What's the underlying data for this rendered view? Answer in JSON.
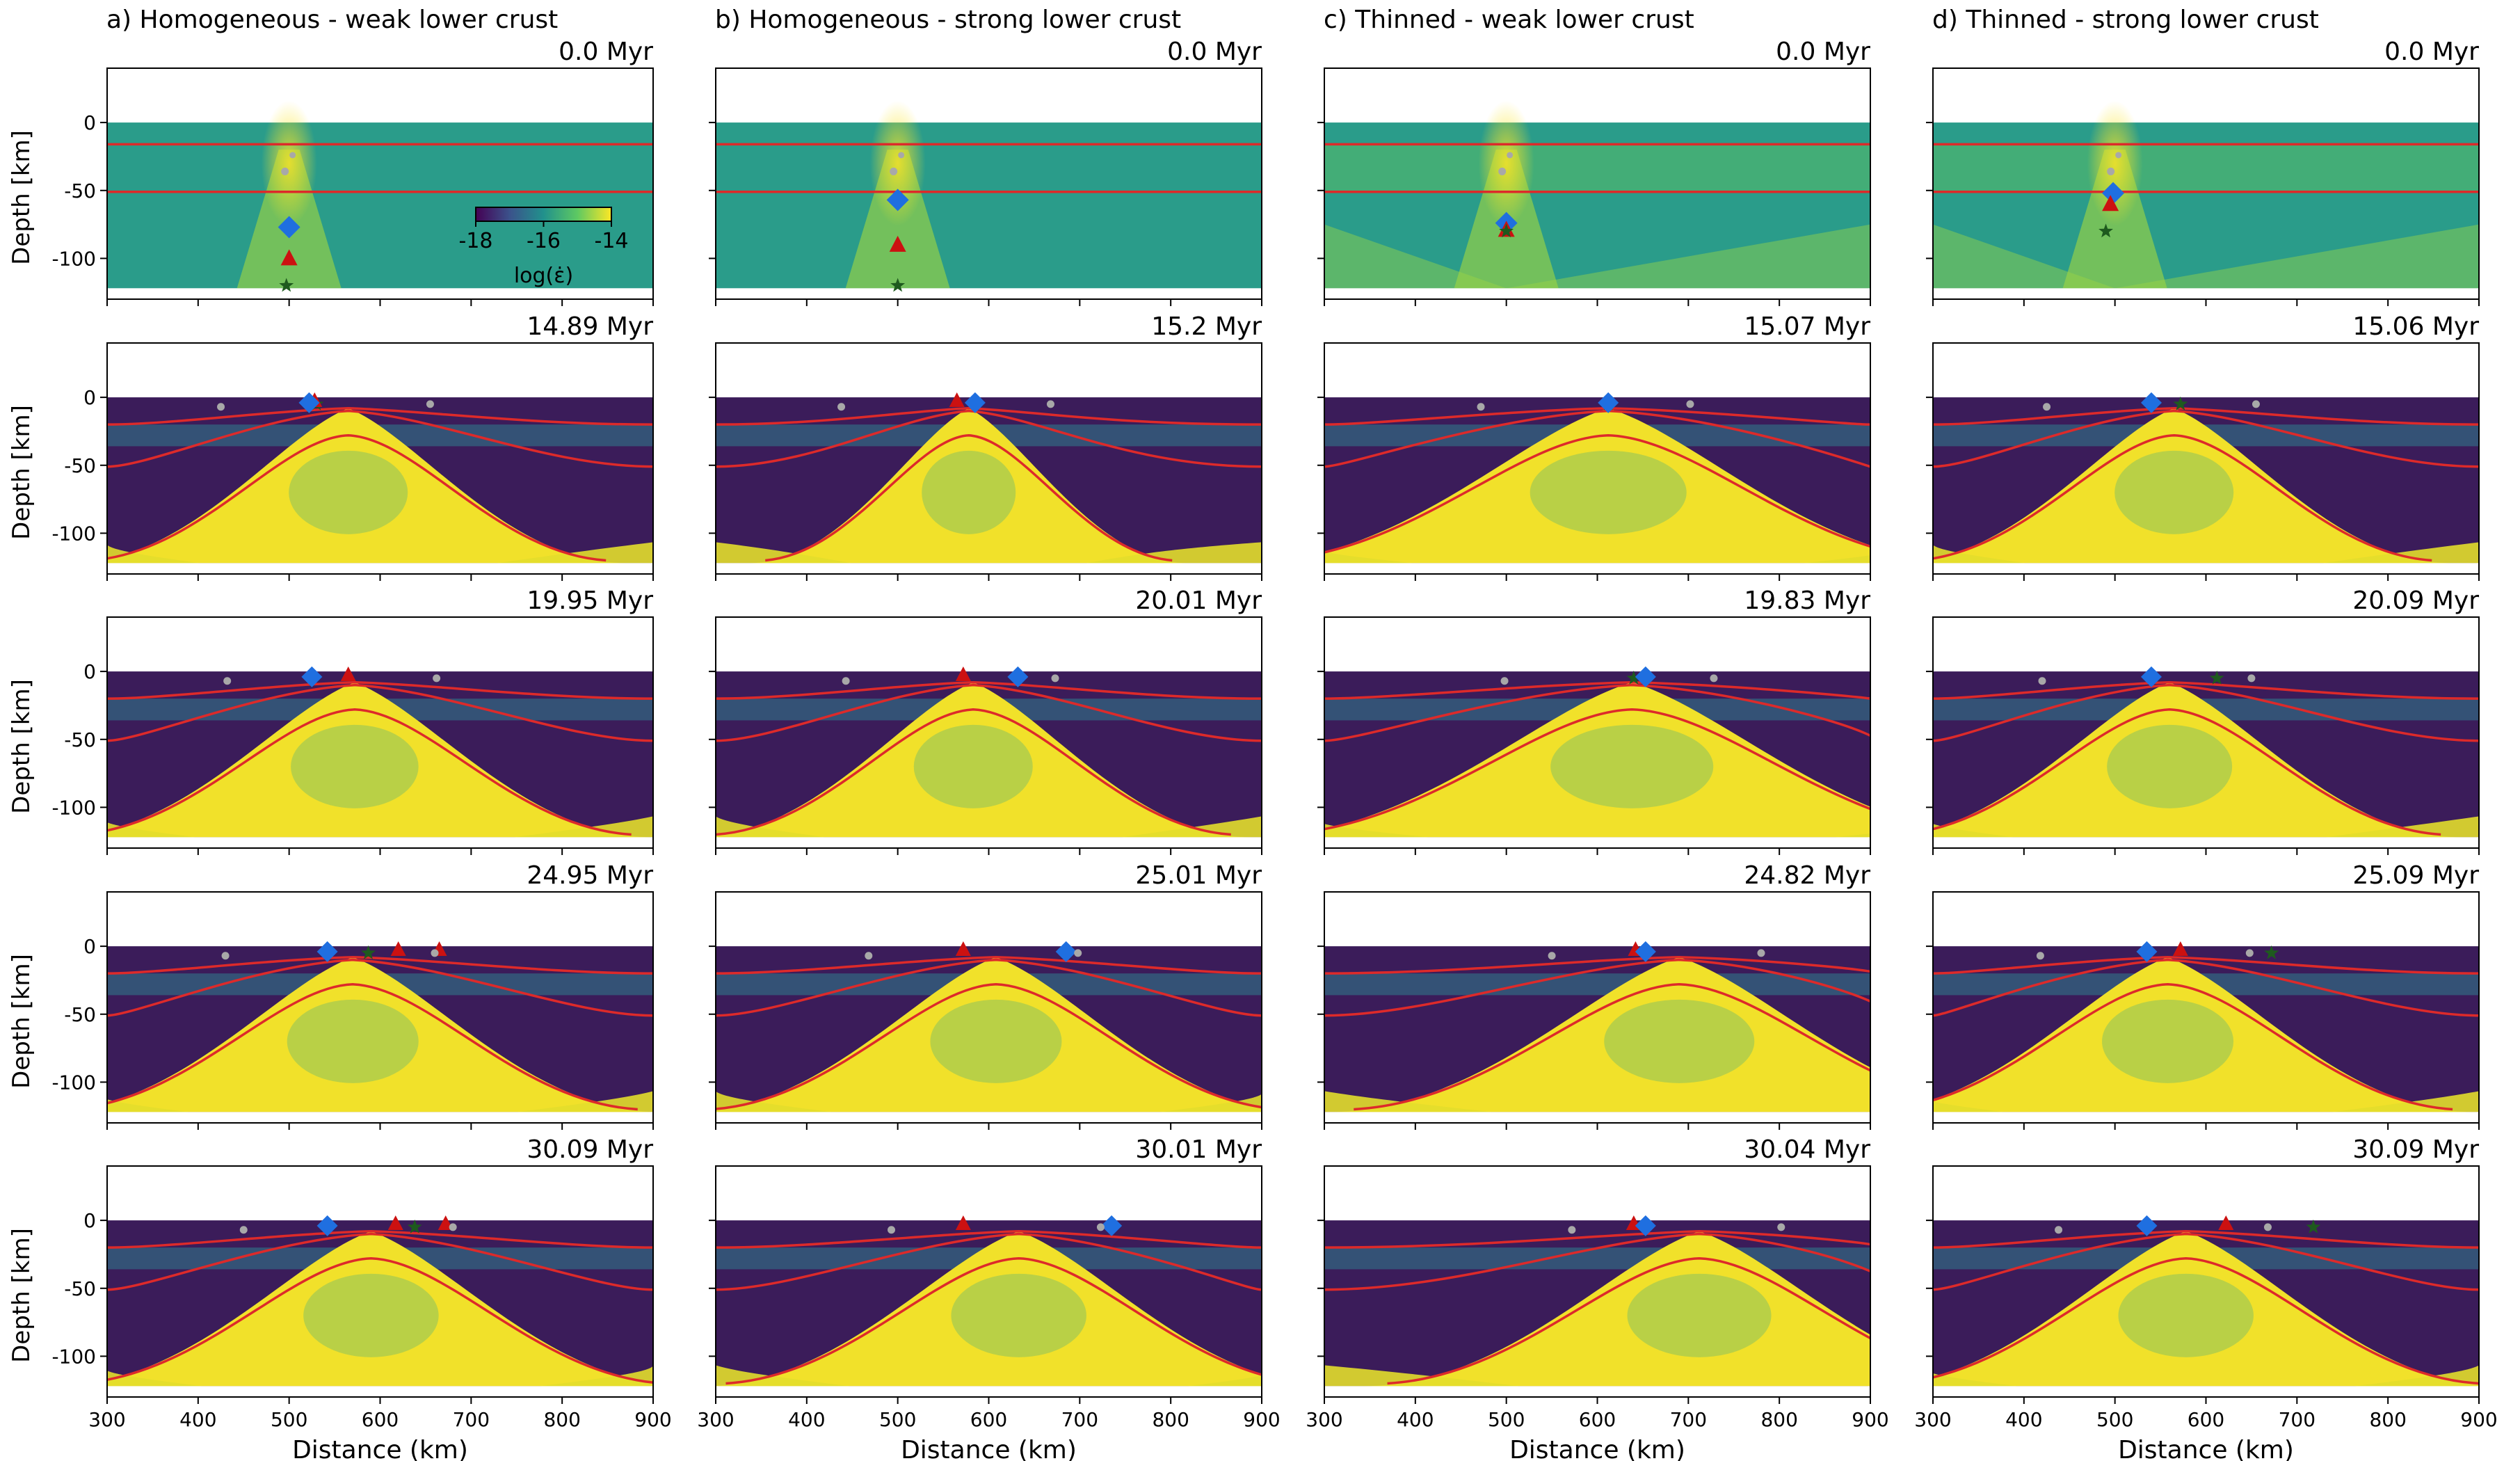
{
  "figure": {
    "columns": [
      {
        "id": "a",
        "title": "a) Homogeneous - weak lower crust",
        "times": [
          "0.0 Myr",
          "14.89 Myr",
          "19.95 Myr",
          "24.95 Myr",
          "30.09 Myr"
        ]
      },
      {
        "id": "b",
        "title": "b) Homogeneous - strong lower crust",
        "times": [
          "0.0 Myr",
          "15.2 Myr",
          "20.01 Myr",
          "25.01 Myr",
          "30.01 Myr"
        ]
      },
      {
        "id": "c",
        "title": "c) Thinned - weak lower crust",
        "times": [
          "0.0 Myr",
          "15.07 Myr",
          "19.83 Myr",
          "24.82 Myr",
          "30.04 Myr"
        ]
      },
      {
        "id": "d",
        "title": "d) Thinned - strong lower crust",
        "times": [
          "0.0 Myr",
          "15.06 Myr",
          "20.09 Myr",
          "25.09 Myr",
          "30.09 Myr"
        ]
      }
    ],
    "ylabel": "Depth [km]",
    "xlabel": "Distance (km)",
    "colorbar": {
      "label": "log(ε̇)",
      "ticks": [
        "-18",
        "-16",
        "-14"
      ],
      "range": [
        -18,
        -14
      ],
      "colormap": [
        "#440154",
        "#3b528b",
        "#21918c",
        "#5ec962",
        "#fde725"
      ]
    }
  },
  "chart_data": {
    "type": "heatmap",
    "xlim": [
      300,
      900
    ],
    "ylim": [
      -130,
      40
    ],
    "xticks": [
      "300",
      "400",
      "500",
      "600",
      "700",
      "800",
      "900"
    ],
    "yticks": [
      "0",
      "-50",
      "-100"
    ],
    "grid": false,
    "colors": {
      "background_initial": "#2a9c8a",
      "low_strain": "#3b1c5a",
      "high_strain": "#f1e12a",
      "mid_strain": "#2f7f8e",
      "interface_lines": "#dd2a2a",
      "diamond": "#1f6fe0",
      "triangle": "#cc1111",
      "star": "#1e5a1e",
      "circle": "#a8a8a8"
    },
    "interfaces_t0": [
      -16,
      -51
    ],
    "markers_t0": {
      "a": {
        "diamond": [
          500,
          -77
        ],
        "triangle": [
          500,
          -100
        ],
        "star": [
          497,
          -120
        ]
      },
      "b": {
        "diamond": [
          500,
          -57
        ],
        "triangle": [
          500,
          -90
        ],
        "star": [
          500,
          -120
        ]
      },
      "c": {
        "diamond": [
          500,
          -74
        ],
        "triangle": [
          500,
          -79
        ],
        "star": [
          500,
          -80
        ]
      },
      "d": {
        "diamond": [
          498,
          -52
        ],
        "triangle": [
          495,
          -60
        ],
        "star": [
          490,
          -80
        ]
      }
    },
    "panels": [
      [
        {
          "axis": 565,
          "amp": 1.0,
          "width": 1.0,
          "diamond": null
        },
        {
          "axis": 565,
          "amp": 0.9,
          "width": 0.95,
          "diamond": 522,
          "triangle": 528,
          "star": 530
        },
        {
          "axis": 572,
          "amp": 0.92,
          "width": 1.02,
          "diamond": 525,
          "triangle": 565
        },
        {
          "axis": 570,
          "amp": 0.95,
          "width": 1.05,
          "diamond": 542,
          "triangle": 620,
          "triangle2": 665,
          "star": 587
        },
        {
          "axis": 590,
          "amp": 0.97,
          "width": 1.08,
          "diamond": 542,
          "triangle": 617,
          "triangle2": 672,
          "star": 638
        }
      ],
      [
        {
          "axis": 560,
          "amp": 1.0,
          "width": 1.0,
          "diamond": null
        },
        {
          "axis": 578,
          "amp": 0.9,
          "width": 0.75,
          "diamond": 585,
          "triangle": 565
        },
        {
          "axis": 583,
          "amp": 0.93,
          "width": 0.95,
          "diamond": 632,
          "triangle": 572
        },
        {
          "axis": 608,
          "amp": 0.96,
          "width": 1.05,
          "diamond": 685,
          "triangle": 572
        },
        {
          "axis": 633,
          "amp": 0.97,
          "width": 1.08,
          "diamond": 735,
          "triangle": 572
        }
      ],
      [
        {
          "axis": 600,
          "amp": 1.0,
          "width": 1.0,
          "diamond": null
        },
        {
          "axis": 612,
          "amp": 0.8,
          "width": 1.25,
          "diamond": 612,
          "star": 612
        },
        {
          "axis": 638,
          "amp": 0.85,
          "width": 1.3,
          "diamond": 653,
          "star": 640
        },
        {
          "axis": 690,
          "amp": 0.9,
          "width": 1.2,
          "diamond": 653,
          "triangle": 642
        },
        {
          "axis": 712,
          "amp": 0.93,
          "width": 1.15,
          "diamond": 653,
          "triangle": 640
        }
      ],
      [
        {
          "axis": 560,
          "amp": 1.0,
          "width": 1.0,
          "diamond": null
        },
        {
          "axis": 565,
          "amp": 0.9,
          "width": 0.95,
          "diamond": 540,
          "star": 572
        },
        {
          "axis": 560,
          "amp": 0.93,
          "width": 1.0,
          "diamond": 540,
          "star": 612
        },
        {
          "axis": 558,
          "amp": 0.95,
          "width": 1.05,
          "diamond": 535,
          "triangle": 572,
          "star": 672
        },
        {
          "axis": 578,
          "amp": 0.97,
          "width": 1.08,
          "diamond": 535,
          "triangle": 622,
          "star": 718
        }
      ]
    ]
  }
}
